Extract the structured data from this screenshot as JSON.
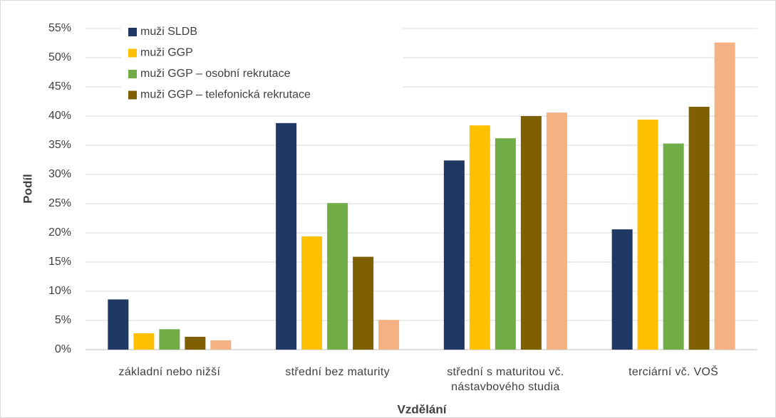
{
  "chart_data": {
    "type": "bar",
    "categories": [
      "základní nebo nižší",
      "střední bez maturity",
      "střední s maturitou vč. nástavbového studia",
      "terciární vč. VOŠ"
    ],
    "series": [
      {
        "name": "muži SLDB",
        "color": "#1f3864",
        "values": [
          8.6,
          38.8,
          32.4,
          20.6
        ]
      },
      {
        "name": "muži GGP",
        "color": "#ffc000",
        "values": [
          2.8,
          19.4,
          38.4,
          39.4
        ]
      },
      {
        "name": "muži GGP – osobní rekrutace",
        "color": "#70ad47",
        "values": [
          3.5,
          25.1,
          36.2,
          35.3
        ]
      },
      {
        "name": "muži GGP – telefonická rekrutace",
        "color": "#7f6000",
        "values": [
          2.2,
          15.9,
          40.0,
          41.6
        ]
      },
      {
        "color": "#f4b183",
        "values": [
          1.6,
          5.1,
          40.6,
          52.6
        ]
      }
    ],
    "x_label": "Vzdělání",
    "y_label": "Podíl",
    "ylim": [
      0,
      55
    ],
    "yticks": [
      {
        "value": 0,
        "label": "0%"
      },
      {
        "value": 5,
        "label": "5%"
      },
      {
        "value": 10,
        "label": "10%"
      },
      {
        "value": 15,
        "label": "15%"
      },
      {
        "value": 20,
        "label": "20%"
      },
      {
        "value": 25,
        "label": "25%"
      },
      {
        "value": 30,
        "label": "30%"
      },
      {
        "value": 35,
        "label": "35%"
      },
      {
        "value": 40,
        "label": "40%"
      },
      {
        "value": 45,
        "label": "45%"
      },
      {
        "value": 50,
        "label": "50%"
      },
      {
        "value": 55,
        "label": "55%"
      }
    ],
    "grid": true,
    "legend": "top-left"
  }
}
